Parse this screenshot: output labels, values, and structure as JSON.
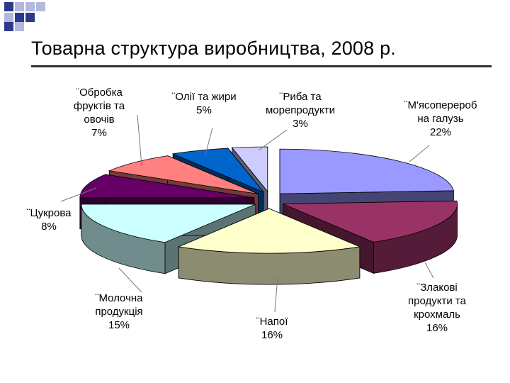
{
  "slide": {
    "title": "Товарна структура виробництва, 2008 р."
  },
  "colors": {
    "deco_blue": "#2d3a8c",
    "deco_light": "#b3b9dc",
    "rule": "#2f2f2f"
  },
  "chart_data": {
    "type": "pie",
    "title": "Товарна структура виробництва, 2008 р.",
    "unit": "%",
    "slices": [
      {
        "label_lines": [
          "¨М'ясопереробна галузь"
        ],
        "display_lines": [
          "¨М'ясоперероб",
          "на галузь",
          "22%"
        ],
        "value": 22,
        "color": "#9999ff"
      },
      {
        "label_lines": [
          "¨Злакові продукти та крохмаль"
        ],
        "display_lines": [
          "¨Злакові",
          "продукти та",
          "крохмаль",
          "16%"
        ],
        "value": 16,
        "color": "#993366"
      },
      {
        "label_lines": [
          "¨Напої"
        ],
        "display_lines": [
          "¨Напої",
          "16%"
        ],
        "value": 16,
        "color": "#ffffcc"
      },
      {
        "label_lines": [
          "¨Молочна продукція"
        ],
        "display_lines": [
          "¨Молочна",
          "продукція",
          "15%"
        ],
        "value": 15,
        "color": "#ccffff"
      },
      {
        "label_lines": [
          "¨Цукрова"
        ],
        "display_lines": [
          "¨Цукрова",
          "8%"
        ],
        "value": 8,
        "color": "#660066"
      },
      {
        "label_lines": [
          "¨Обробка фруктів та овочів"
        ],
        "display_lines": [
          "¨Обробка",
          "фруктів та",
          "овочів",
          "7%"
        ],
        "value": 7,
        "color": "#ff8080"
      },
      {
        "label_lines": [
          "¨Олії та жири"
        ],
        "display_lines": [
          "¨Олії та жири",
          "5%"
        ],
        "value": 5,
        "color": "#0066cc"
      },
      {
        "label_lines": [
          "¨Риба та морепродукти"
        ],
        "display_lines": [
          "¨Риба та",
          "морепродукти",
          "3%"
        ],
        "value": 3,
        "color": "#ccccff"
      }
    ]
  }
}
